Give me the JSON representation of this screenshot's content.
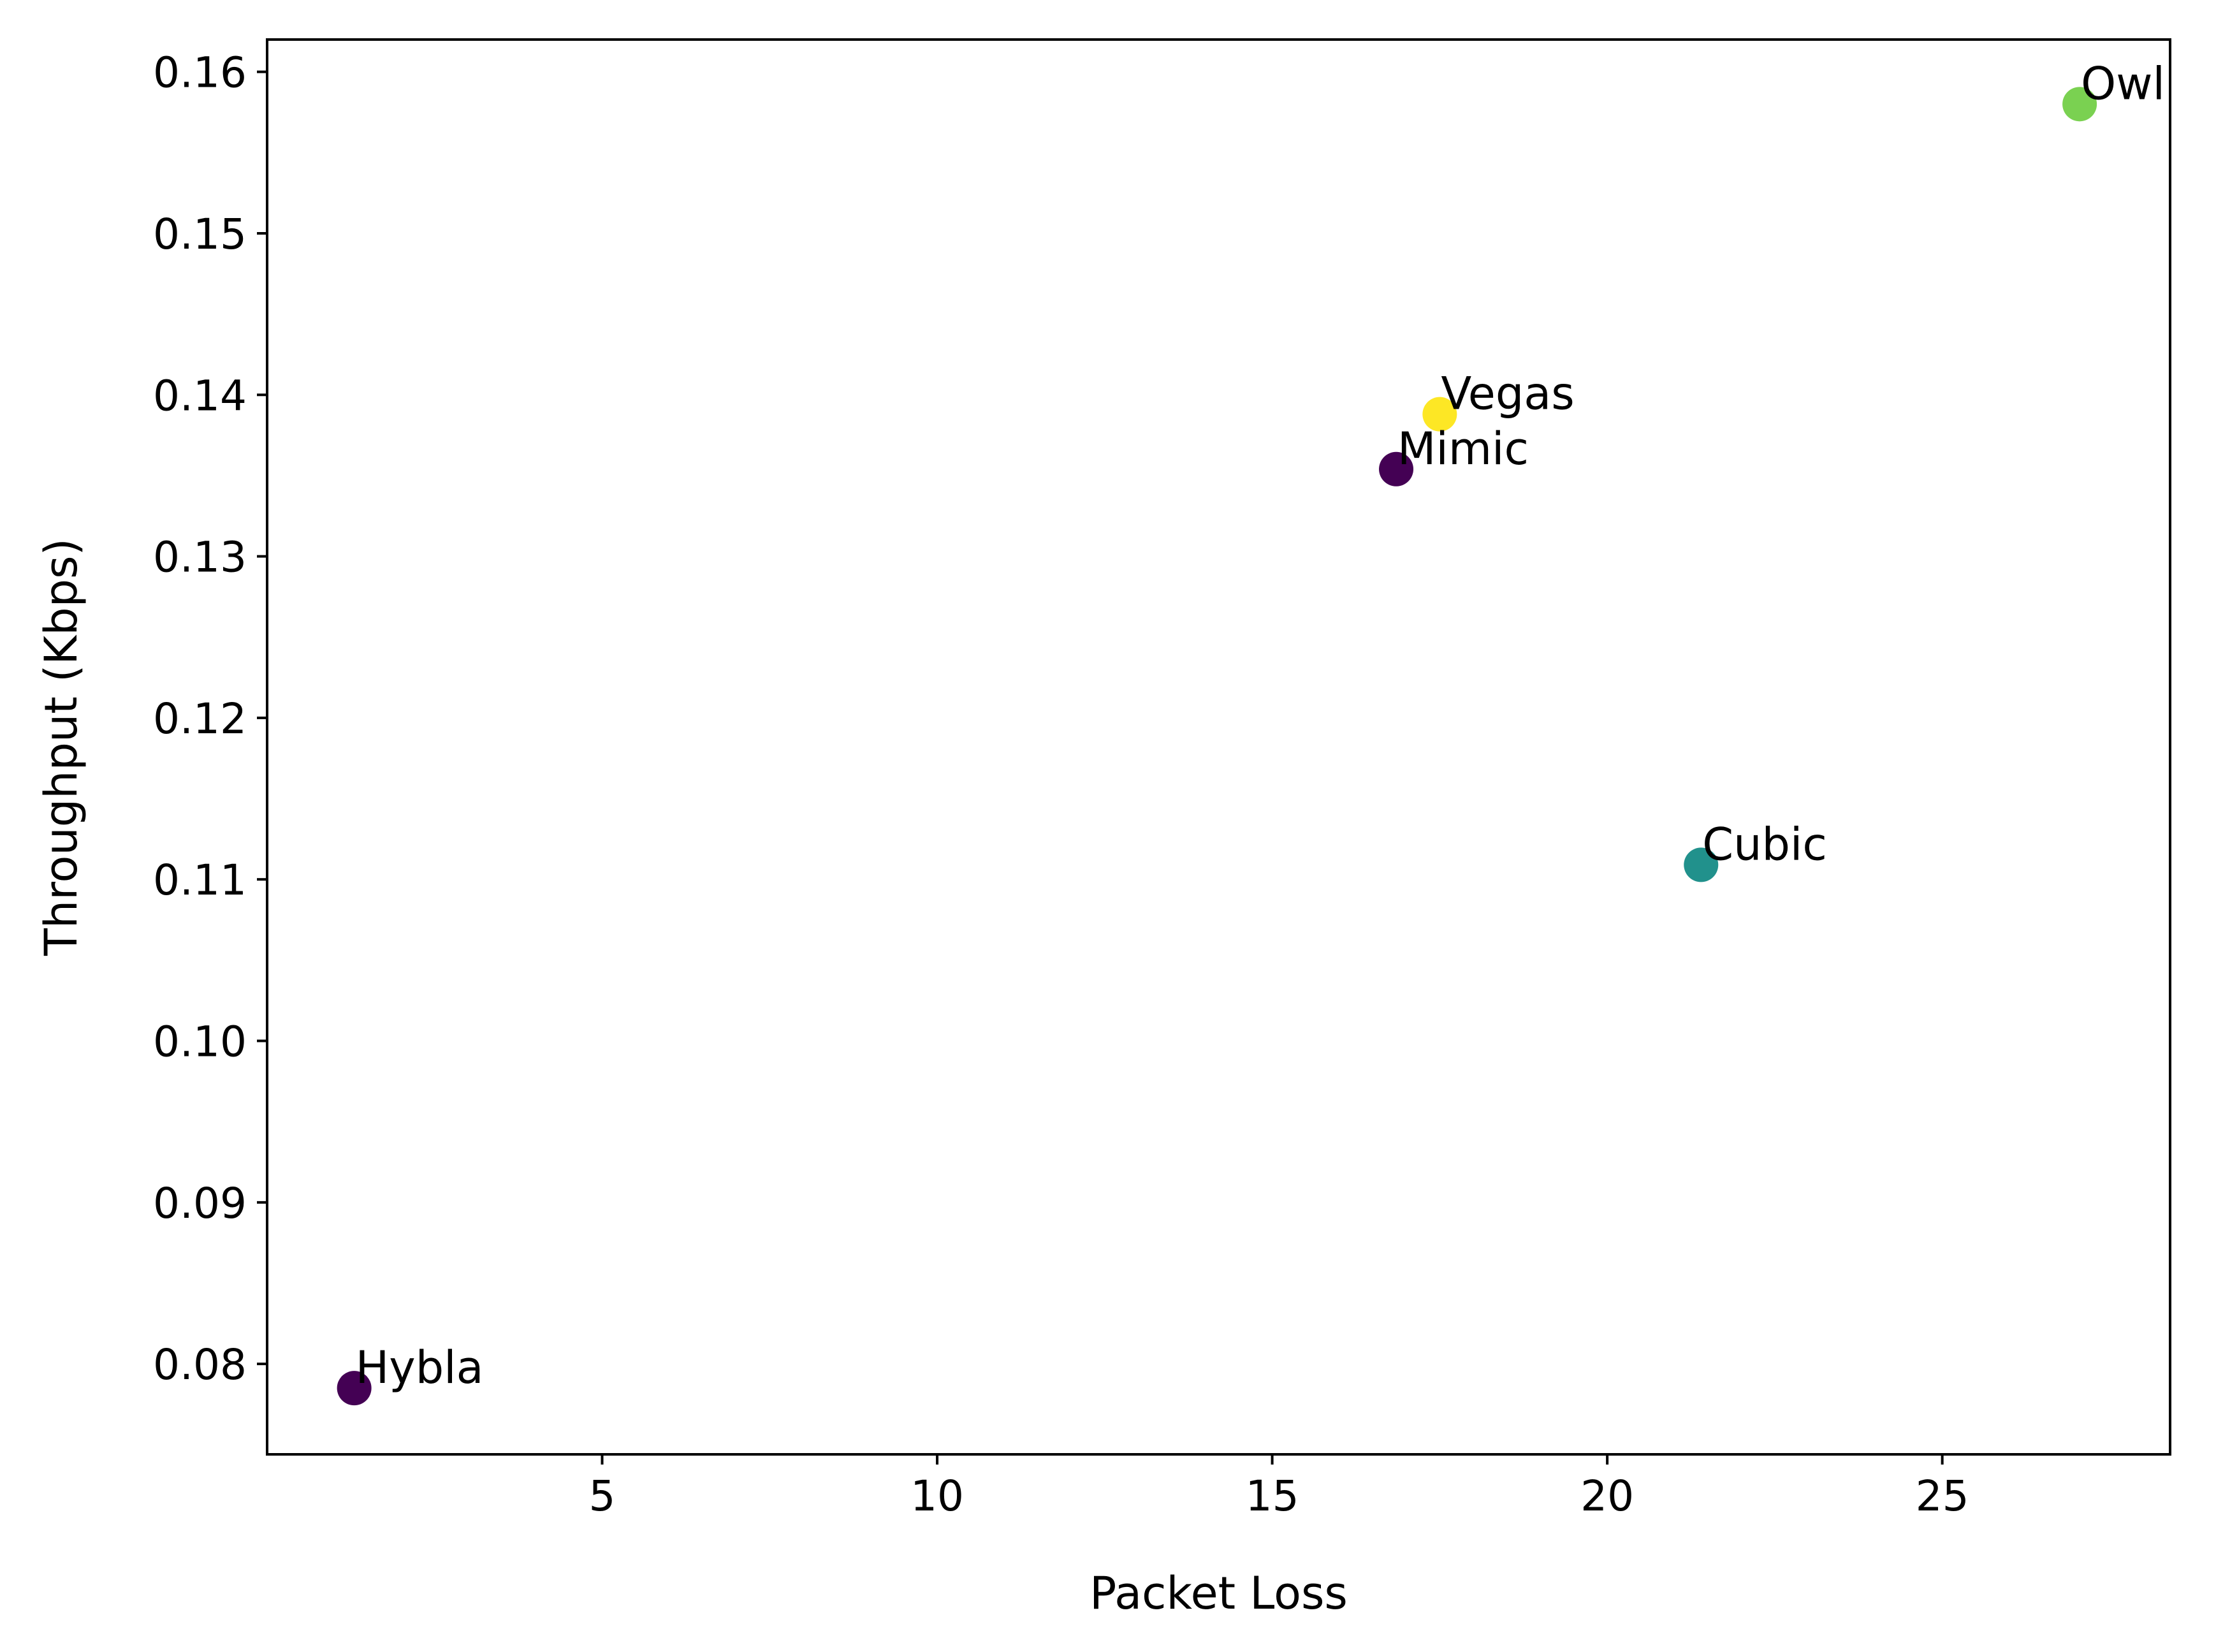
{
  "chart_data": {
    "type": "scatter",
    "title": "",
    "xlabel": "Packet Loss",
    "ylabel": "Throughput (Kbps)",
    "xlim": [
      0.0,
      28.4
    ],
    "ylim": [
      0.0744,
      0.162
    ],
    "xticks": [
      5,
      10,
      15,
      20,
      25
    ],
    "yticks": [
      0.08,
      0.09,
      0.1,
      0.11,
      0.12,
      0.13,
      0.14,
      0.15,
      0.16
    ],
    "xtick_labels": [
      "5",
      "10",
      "15",
      "20",
      "25"
    ],
    "ytick_labels": [
      "0.08",
      "0.09",
      "0.10",
      "0.11",
      "0.12",
      "0.13",
      "0.14",
      "0.15",
      "0.16"
    ],
    "grid": false,
    "legend": "none",
    "points": [
      {
        "label": "Owl",
        "x": 27.05,
        "y": 0.158,
        "color": "#7ad151"
      },
      {
        "label": "Vegas",
        "x": 17.5,
        "y": 0.1388,
        "color": "#fde725"
      },
      {
        "label": "Mimic",
        "x": 16.85,
        "y": 0.1354,
        "color": "#440154"
      },
      {
        "label": "Cubic",
        "x": 21.4,
        "y": 0.1109,
        "color": "#21918c"
      },
      {
        "label": "Hybla",
        "x": 1.3,
        "y": 0.0785,
        "color": "#440154"
      }
    ]
  }
}
